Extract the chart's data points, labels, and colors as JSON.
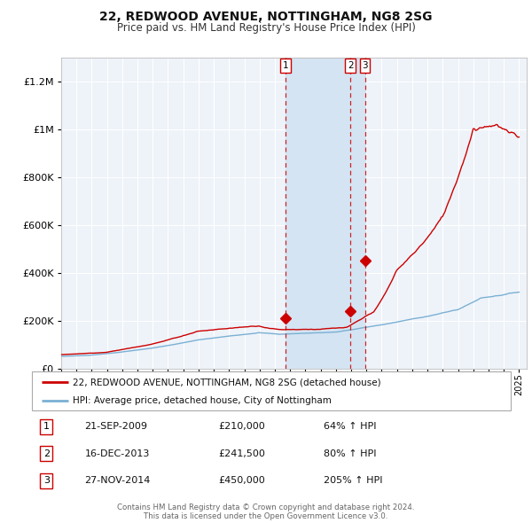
{
  "title": "22, REDWOOD AVENUE, NOTTINGHAM, NG8 2SG",
  "subtitle": "Price paid vs. HM Land Registry's House Price Index (HPI)",
  "legend_line1": "22, REDWOOD AVENUE, NOTTINGHAM, NG8 2SG (detached house)",
  "legend_line2": "HPI: Average price, detached house, City of Nottingham",
  "red_color": "#cc0000",
  "blue_color": "#7ab0d4",
  "plot_bg": "#eef3f9",
  "grid_color": "#ffffff",
  "shade_color": "#d4e4f2",
  "transactions": [
    {
      "num": 1,
      "date": "21-SEP-2009",
      "date_float": 2009.72,
      "price": 210000,
      "pct": "64%",
      "direction": "↑"
    },
    {
      "num": 2,
      "date": "16-DEC-2013",
      "date_float": 2013.96,
      "price": 241500,
      "pct": "80%",
      "direction": "↑"
    },
    {
      "num": 3,
      "date": "27-NOV-2014",
      "date_float": 2014.9,
      "price": 450000,
      "pct": "205%",
      "direction": "↑"
    }
  ],
  "footer1": "Contains HM Land Registry data © Crown copyright and database right 2024.",
  "footer2": "This data is licensed under the Open Government Licence v3.0.",
  "ylim": [
    0,
    1300000
  ],
  "xlim_start": 1995.0,
  "xlim_end": 2025.5,
  "yticks": [
    0,
    200000,
    400000,
    600000,
    800000,
    1000000,
    1200000
  ]
}
